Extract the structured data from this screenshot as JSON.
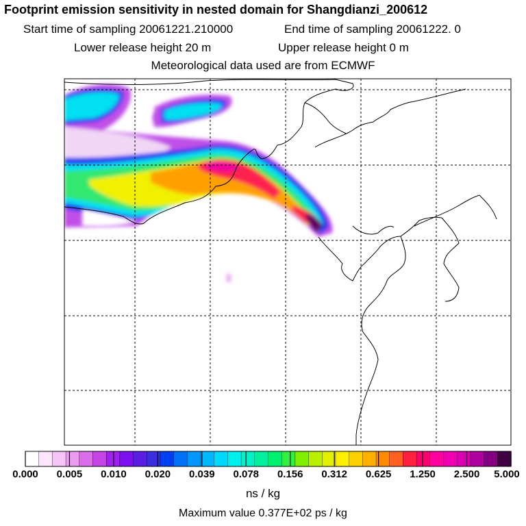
{
  "header": {
    "title": "Footprint emission sensitivity in nested domain for Shangdianzi_200612",
    "start_sampling": "Start time of sampling 20061221.210000",
    "end_sampling": "End time of sampling 20061222.     0",
    "lower_release": "Lower release height   20 m",
    "upper_release": "Upper release height    0 m",
    "met_data": "Meteorological data used are from ECMWF"
  },
  "colorbar": {
    "tick_labels": [
      "0.000",
      "0.005",
      "0.010",
      "0.020",
      "0.039",
      "0.078",
      "0.156",
      "0.312",
      "0.625",
      "1.250",
      "2.500",
      "5.000"
    ],
    "colors": [
      "#ffffff",
      "#fde6fd",
      "#f6c4f7",
      "#ec9cf0",
      "#d96ee8",
      "#c444e6",
      "#a020f0",
      "#7a10f0",
      "#5a1ee0",
      "#3a2ee0",
      "#0040f0",
      "#0070f8",
      "#0098ff",
      "#00b8ff",
      "#00d8ff",
      "#00f0f0",
      "#00f0c8",
      "#00f0a0",
      "#00f070",
      "#30f040",
      "#80f000",
      "#b8f000",
      "#e0f000",
      "#fff000",
      "#ffd000",
      "#ffb000",
      "#ff8c00",
      "#ff6020",
      "#ff2040",
      "#ff0070",
      "#ff00a0",
      "#f000b0",
      "#d800b0",
      "#b000a0",
      "#800080",
      "#400040"
    ],
    "units": "ns / kg"
  },
  "footer": {
    "max_value": "Maximum value  0.377E+02 ps / kg"
  }
}
